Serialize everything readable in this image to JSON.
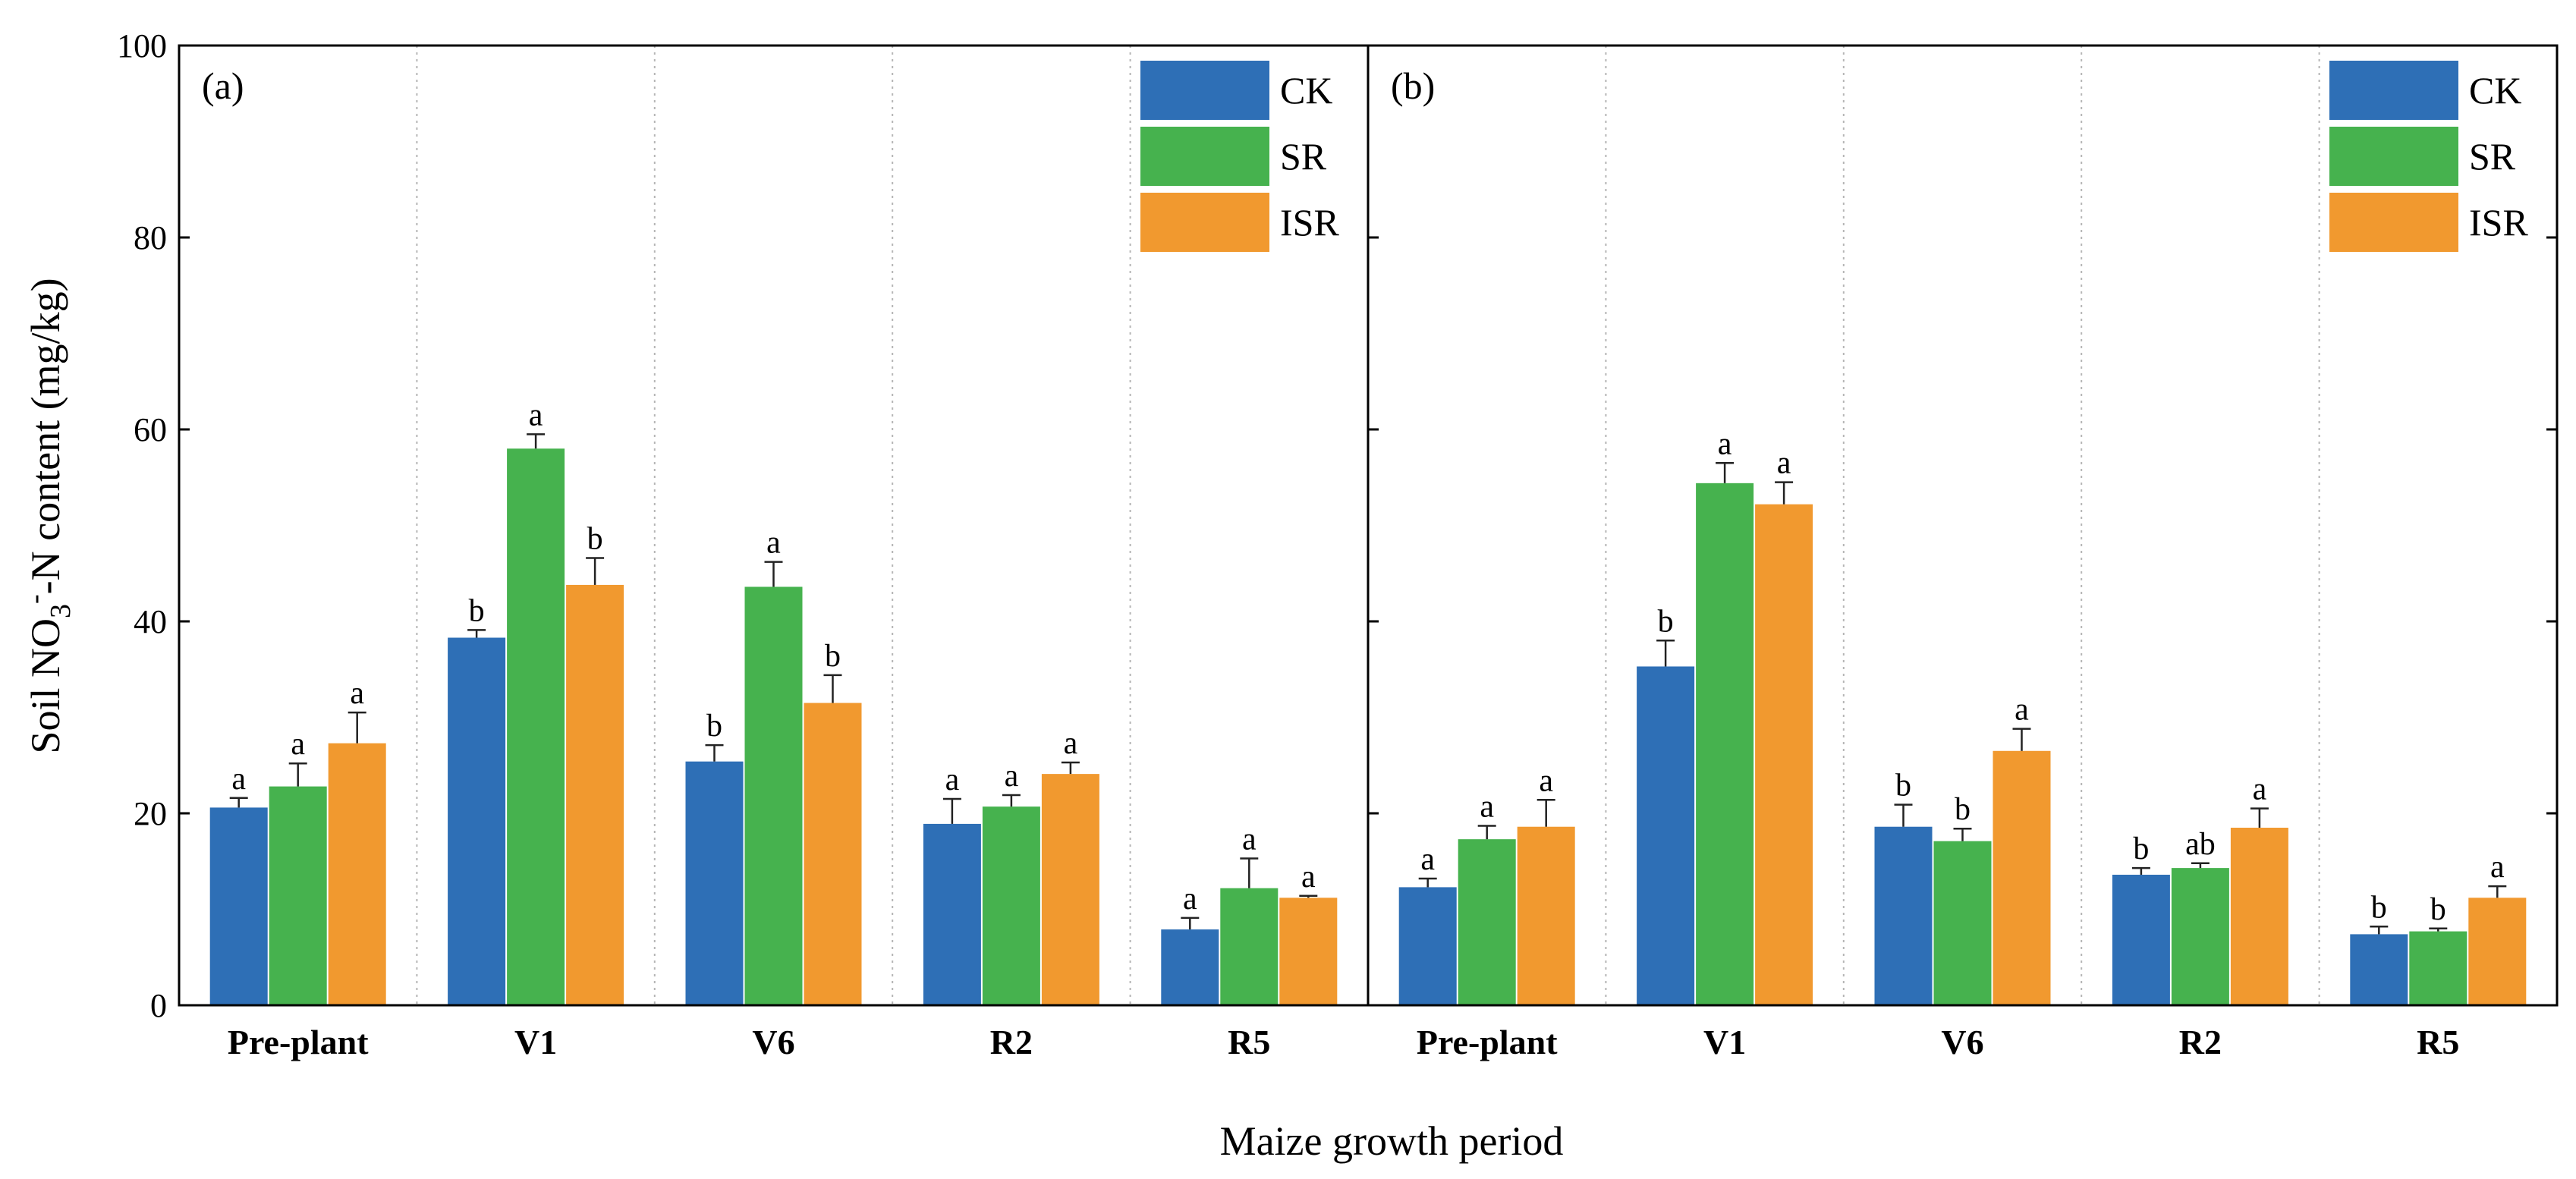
{
  "chart_data": {
    "type": "bar",
    "xlabel": "Maize growth period",
    "ylabel": {
      "prefix": "Soil NO",
      "subscript": "3",
      "superscript": "-",
      "suffix": "-N content (mg/kg)"
    },
    "ylim": [
      0,
      100
    ],
    "yticks": [
      "0",
      "20",
      "40",
      "60",
      "80",
      "100"
    ],
    "grid": "vertical dotted separators between categories",
    "legend_position": "top-right of each panel",
    "series_names": [
      "CK",
      "SR",
      "ISR"
    ],
    "colors": {
      "CK": "#2e6fb6",
      "SR": "#46b24e",
      "ISR": "#f1992f"
    },
    "panels": [
      {
        "label": "(a)",
        "categories": [
          "Pre-plant",
          "V1",
          "V6",
          "R2",
          "R5"
        ],
        "series": [
          {
            "name": "CK",
            "values": [
              20.6,
              38.3,
              25.4,
              18.9,
              7.9
            ],
            "errors": [
              1.0,
              0.8,
              1.7,
              2.6,
              1.2
            ],
            "letters": [
              "a",
              "b",
              "b",
              "a",
              "a"
            ]
          },
          {
            "name": "SR",
            "values": [
              22.8,
              58.0,
              43.6,
              20.7,
              12.2
            ],
            "errors": [
              2.4,
              1.5,
              2.6,
              1.2,
              3.1
            ],
            "letters": [
              "a",
              "a",
              "a",
              "a",
              "a"
            ]
          },
          {
            "name": "ISR",
            "values": [
              27.3,
              43.8,
              31.5,
              24.1,
              11.2
            ],
            "errors": [
              3.2,
              2.8,
              2.9,
              1.2,
              0.2
            ],
            "letters": [
              "a",
              "b",
              "b",
              "a",
              "a"
            ]
          }
        ]
      },
      {
        "label": "(b)",
        "categories": [
          "Pre-plant",
          "V1",
          "V6",
          "R2",
          "R5"
        ],
        "series": [
          {
            "name": "CK",
            "values": [
              12.3,
              35.3,
              18.6,
              13.6,
              7.4
            ],
            "errors": [
              0.9,
              2.7,
              2.3,
              0.7,
              0.8
            ],
            "letters": [
              "a",
              "b",
              "b",
              "b",
              "b"
            ]
          },
          {
            "name": "SR",
            "values": [
              17.3,
              54.4,
              17.1,
              14.3,
              7.7
            ],
            "errors": [
              1.4,
              2.1,
              1.3,
              0.5,
              0.3
            ],
            "letters": [
              "a",
              "a",
              "b",
              "ab",
              "b"
            ]
          },
          {
            "name": "ISR",
            "values": [
              18.6,
              52.2,
              26.5,
              18.5,
              11.2
            ],
            "errors": [
              2.8,
              2.3,
              2.3,
              2.0,
              1.2
            ],
            "letters": [
              "a",
              "a",
              "a",
              "a",
              "a"
            ]
          }
        ]
      }
    ]
  }
}
